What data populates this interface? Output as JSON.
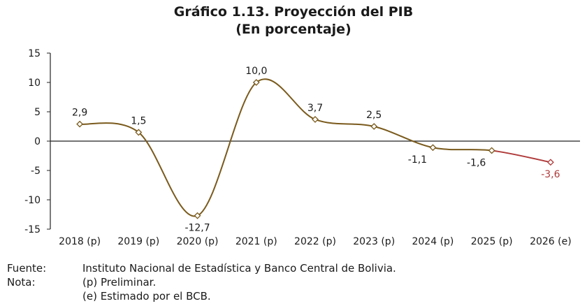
{
  "chart_data": {
    "type": "line",
    "title": "Gráfico 1.13. Proyección del PIB",
    "subtitle": "(En porcentaje)",
    "categories": [
      "2018 (p)",
      "2019 (p)",
      "2020 (p)",
      "2021 (p)",
      "2022 (p)",
      "2023 (p)",
      "2024 (p)",
      "2025 (p)",
      "2026 (e)"
    ],
    "series": [
      {
        "values": [
          2.9,
          1.5,
          -12.7,
          10.0,
          3.7,
          2.5,
          -1.1,
          -1.6,
          -3.6
        ]
      }
    ],
    "data_labels": [
      "2,9",
      "1,5",
      "-12,7",
      "10,0",
      "3,7",
      "2,5",
      "-1,1",
      "-1,6",
      "-3,6"
    ],
    "y_ticks": [
      15,
      10,
      5,
      0,
      -5,
      -10,
      -15
    ],
    "ylim": [
      -15,
      15
    ],
    "colors": {
      "line": "#7a5a1c",
      "projection": "#b03a3a"
    }
  },
  "notes": [
    {
      "key": "Fuente:",
      "text": "Instituto Nacional de Estadística y Banco Central de Bolivia."
    },
    {
      "key": "Nota:",
      "text": "(p) Preliminar."
    },
    {
      "key": "",
      "text": "(e) Estimado por el BCB."
    }
  ]
}
